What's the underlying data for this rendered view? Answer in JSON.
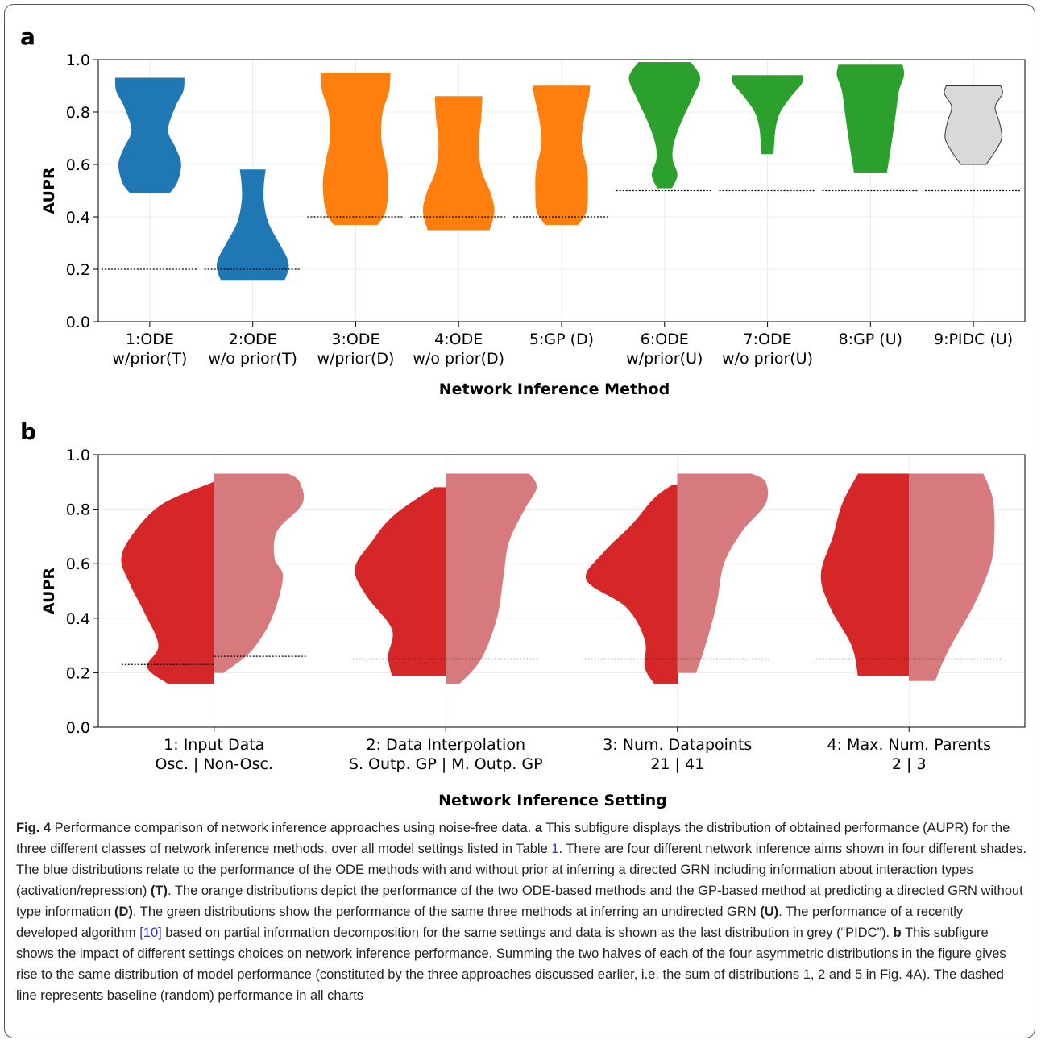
{
  "panel_a": {
    "label": "a",
    "ylabel": "AUPR",
    "xlabel": "Network Inference Method",
    "ylim": [
      0.0,
      1.0
    ],
    "yticks": [
      "0.0",
      "0.2",
      "0.4",
      "0.6",
      "0.8",
      "1.0"
    ]
  },
  "panel_b": {
    "label": "b",
    "ylabel": "AUPR",
    "xlabel": "Network Inference Setting",
    "ylim": [
      0.0,
      1.0
    ],
    "yticks": [
      "0.0",
      "0.2",
      "0.4",
      "0.6",
      "0.8",
      "1.0"
    ]
  },
  "colors": {
    "T": "#1f77b4",
    "D": "#ff7f0e",
    "U": "#2ca02c",
    "PIDC": "#d9d9d9",
    "half_left": "#d62728",
    "half_right": "#d67a7d"
  },
  "chart_data": [
    {
      "type": "violin",
      "panel": "a",
      "categories": [
        [
          "1:ODE",
          "w/prior(T)"
        ],
        [
          "2:ODE",
          "w/o prior(T)"
        ],
        [
          "3:ODE",
          "w/prior(D)"
        ],
        [
          "4:ODE",
          "w/o prior(D)"
        ],
        [
          "5:GP (D)"
        ],
        [
          "6:ODE",
          "w/prior(U)"
        ],
        [
          "7:ODE",
          "w/o prior(U)"
        ],
        [
          "8:GP (U)"
        ],
        [
          "9:PIDC (U)"
        ]
      ],
      "xlabel": "Network Inference Method",
      "ylabel": "AUPR",
      "ylim": [
        0,
        1
      ],
      "series": [
        {
          "group": "T",
          "min": 0.49,
          "max": 0.93,
          "baseline": 0.2,
          "profile": [
            [
              0.49,
              0.54
            ],
            [
              0.53,
              0.75
            ],
            [
              0.6,
              0.86
            ],
            [
              0.66,
              0.72
            ],
            [
              0.73,
              0.5
            ],
            [
              0.82,
              0.7
            ],
            [
              0.88,
              0.92
            ],
            [
              0.93,
              0.95
            ]
          ]
        },
        {
          "group": "T",
          "min": 0.16,
          "max": 0.58,
          "baseline": 0.2,
          "profile": [
            [
              0.16,
              0.88
            ],
            [
              0.2,
              0.98
            ],
            [
              0.24,
              0.95
            ],
            [
              0.3,
              0.72
            ],
            [
              0.38,
              0.42
            ],
            [
              0.46,
              0.3
            ],
            [
              0.52,
              0.3
            ],
            [
              0.58,
              0.35
            ]
          ]
        },
        {
          "group": "D",
          "min": 0.37,
          "max": 0.95,
          "baseline": 0.4,
          "profile": [
            [
              0.37,
              0.6
            ],
            [
              0.42,
              0.82
            ],
            [
              0.52,
              0.9
            ],
            [
              0.6,
              0.84
            ],
            [
              0.7,
              0.7
            ],
            [
              0.8,
              0.74
            ],
            [
              0.88,
              0.92
            ],
            [
              0.95,
              0.95
            ]
          ]
        },
        {
          "group": "D",
          "min": 0.35,
          "max": 0.86,
          "baseline": 0.4,
          "profile": [
            [
              0.35,
              0.85
            ],
            [
              0.42,
              0.98
            ],
            [
              0.49,
              0.88
            ],
            [
              0.58,
              0.62
            ],
            [
              0.68,
              0.55
            ],
            [
              0.78,
              0.62
            ],
            [
              0.86,
              0.65
            ]
          ]
        },
        {
          "group": "D",
          "min": 0.37,
          "max": 0.9,
          "baseline": 0.4,
          "profile": [
            [
              0.37,
              0.45
            ],
            [
              0.42,
              0.68
            ],
            [
              0.5,
              0.72
            ],
            [
              0.58,
              0.7
            ],
            [
              0.68,
              0.55
            ],
            [
              0.78,
              0.62
            ],
            [
              0.86,
              0.75
            ],
            [
              0.9,
              0.78
            ]
          ]
        },
        {
          "group": "U",
          "min": 0.51,
          "max": 0.99,
          "baseline": 0.5,
          "profile": [
            [
              0.51,
              0.2
            ],
            [
              0.56,
              0.35
            ],
            [
              0.62,
              0.22
            ],
            [
              0.68,
              0.25
            ],
            [
              0.76,
              0.45
            ],
            [
              0.85,
              0.75
            ],
            [
              0.93,
              0.98
            ],
            [
              0.99,
              0.72
            ]
          ]
        },
        {
          "group": "U",
          "min": 0.64,
          "max": 0.94,
          "baseline": 0.5,
          "profile": [
            [
              0.64,
              0.16
            ],
            [
              0.68,
              0.18
            ],
            [
              0.74,
              0.22
            ],
            [
              0.8,
              0.35
            ],
            [
              0.86,
              0.65
            ],
            [
              0.91,
              0.95
            ],
            [
              0.94,
              0.97
            ]
          ]
        },
        {
          "group": "U",
          "min": 0.57,
          "max": 0.98,
          "baseline": 0.5,
          "profile": [
            [
              0.57,
              0.45
            ],
            [
              0.63,
              0.52
            ],
            [
              0.72,
              0.62
            ],
            [
              0.8,
              0.7
            ],
            [
              0.88,
              0.78
            ],
            [
              0.94,
              0.92
            ],
            [
              0.98,
              0.88
            ]
          ]
        },
        {
          "group": "PIDC",
          "min": 0.6,
          "max": 0.9,
          "baseline": 0.5,
          "profile": [
            [
              0.6,
              0.35
            ],
            [
              0.65,
              0.6
            ],
            [
              0.7,
              0.78
            ],
            [
              0.76,
              0.72
            ],
            [
              0.82,
              0.6
            ],
            [
              0.87,
              0.8
            ],
            [
              0.9,
              0.75
            ]
          ]
        }
      ]
    },
    {
      "type": "split-violin",
      "panel": "b",
      "categories": [
        [
          "1: Input Data",
          "Osc. | Non-Osc."
        ],
        [
          "2: Data Interpolation",
          "S. Outp. GP | M. Outp. GP"
        ],
        [
          "3: Num. Datapoints",
          "21 | 41"
        ],
        [
          "4: Max. Num. Parents",
          "2 | 3"
        ]
      ],
      "xlabel": "Network Inference Setting",
      "ylabel": "AUPR",
      "ylim": [
        0,
        1
      ],
      "series": [
        {
          "left": {
            "min": 0.16,
            "max": 0.9,
            "baseline": 0.23,
            "profile": [
              [
                0.16,
                0.5
              ],
              [
                0.22,
                0.72
              ],
              [
                0.3,
                0.6
              ],
              [
                0.42,
                0.75
              ],
              [
                0.52,
                0.9
              ],
              [
                0.62,
                1.0
              ],
              [
                0.72,
                0.85
              ],
              [
                0.82,
                0.55
              ],
              [
                0.9,
                0.0
              ]
            ]
          },
          "right": {
            "min": 0.2,
            "max": 0.93,
            "baseline": 0.26,
            "profile": [
              [
                0.2,
                0.1
              ],
              [
                0.28,
                0.4
              ],
              [
                0.4,
                0.62
              ],
              [
                0.55,
                0.74
              ],
              [
                0.62,
                0.65
              ],
              [
                0.72,
                0.68
              ],
              [
                0.82,
                0.95
              ],
              [
                0.9,
                0.92
              ],
              [
                0.93,
                0.8
              ]
            ]
          }
        },
        {
          "left": {
            "min": 0.19,
            "max": 0.88,
            "baseline": 0.25,
            "profile": [
              [
                0.19,
                0.58
              ],
              [
                0.26,
                0.62
              ],
              [
                0.36,
                0.58
              ],
              [
                0.48,
                0.85
              ],
              [
                0.58,
                0.98
              ],
              [
                0.68,
                0.8
              ],
              [
                0.78,
                0.55
              ],
              [
                0.88,
                0.12
              ]
            ]
          },
          "right": {
            "min": 0.16,
            "max": 0.93,
            "baseline": 0.25,
            "profile": [
              [
                0.16,
                0.15
              ],
              [
                0.25,
                0.38
              ],
              [
                0.4,
                0.55
              ],
              [
                0.55,
                0.62
              ],
              [
                0.68,
                0.68
              ],
              [
                0.8,
                0.85
              ],
              [
                0.88,
                0.98
              ],
              [
                0.93,
                0.9
              ]
            ]
          }
        },
        {
          "left": {
            "min": 0.16,
            "max": 0.89,
            "baseline": 0.25,
            "profile": [
              [
                0.16,
                0.25
              ],
              [
                0.22,
                0.35
              ],
              [
                0.32,
                0.35
              ],
              [
                0.44,
                0.55
              ],
              [
                0.54,
                0.98
              ],
              [
                0.64,
                0.8
              ],
              [
                0.74,
                0.5
              ],
              [
                0.84,
                0.25
              ],
              [
                0.89,
                0.05
              ]
            ]
          },
          "right": {
            "min": 0.2,
            "max": 0.93,
            "baseline": 0.25,
            "profile": [
              [
                0.2,
                0.2
              ],
              [
                0.3,
                0.3
              ],
              [
                0.45,
                0.42
              ],
              [
                0.6,
                0.5
              ],
              [
                0.72,
                0.7
              ],
              [
                0.82,
                0.95
              ],
              [
                0.9,
                0.95
              ],
              [
                0.93,
                0.8
              ]
            ]
          }
        },
        {
          "left": {
            "min": 0.19,
            "max": 0.93,
            "baseline": 0.25,
            "profile": [
              [
                0.19,
                0.55
              ],
              [
                0.3,
                0.62
              ],
              [
                0.44,
                0.85
              ],
              [
                0.56,
                0.95
              ],
              [
                0.7,
                0.82
              ],
              [
                0.82,
                0.72
              ],
              [
                0.93,
                0.55
              ]
            ]
          },
          "right": {
            "min": 0.17,
            "max": 0.93,
            "baseline": 0.25,
            "profile": [
              [
                0.17,
                0.28
              ],
              [
                0.28,
                0.42
              ],
              [
                0.45,
                0.7
              ],
              [
                0.6,
                0.88
              ],
              [
                0.72,
                0.92
              ],
              [
                0.84,
                0.9
              ],
              [
                0.93,
                0.8
              ]
            ]
          }
        }
      ]
    }
  ],
  "caption": {
    "fig_label": "Fig. 4",
    "title": " Performance comparison of network inference approaches using noise-free data. ",
    "a_label": "a",
    "a_text1": " This subfigure displays the distribution of obtained performance (AUPR) for the three different classes of network inference methods, over all model settings listed in Table ",
    "table_ref": "1",
    "a_text2": ". There are four different network inference aims shown in four different shades. The blue distributions relate to the performance of the ODE methods with and without prior at inferring a directed GRN including information about interaction types (activation/repression) ",
    "t_label": "(T)",
    "a_text3": ". The orange distributions depict the performance of the two ODE-based methods and the GP-based method at predicting a directed GRN without type information ",
    "d_label": "(D)",
    "a_text4": ". The green distributions show the performance of the same three methods at inferring an undirected GRN ",
    "u_label": "(U)",
    "a_text5": ". The performance of a recently developed algorithm ",
    "cite_ref": "[10]",
    "a_text6": " based on partial information decomposition for the same settings and data is shown as the last distribution in grey (“PIDC”). ",
    "b_label": "b",
    "b_text": " This subfigure shows the impact of different settings choices on network inference performance. Summing the two halves of each of the four asymmetric distributions in the figure gives rise to the same distribution of model performance (constituted by the three approaches discussed earlier, i.e. the sum of distributions 1, 2 and 5 in Fig. 4A). The dashed line represents baseline (random) performance in all charts"
  }
}
